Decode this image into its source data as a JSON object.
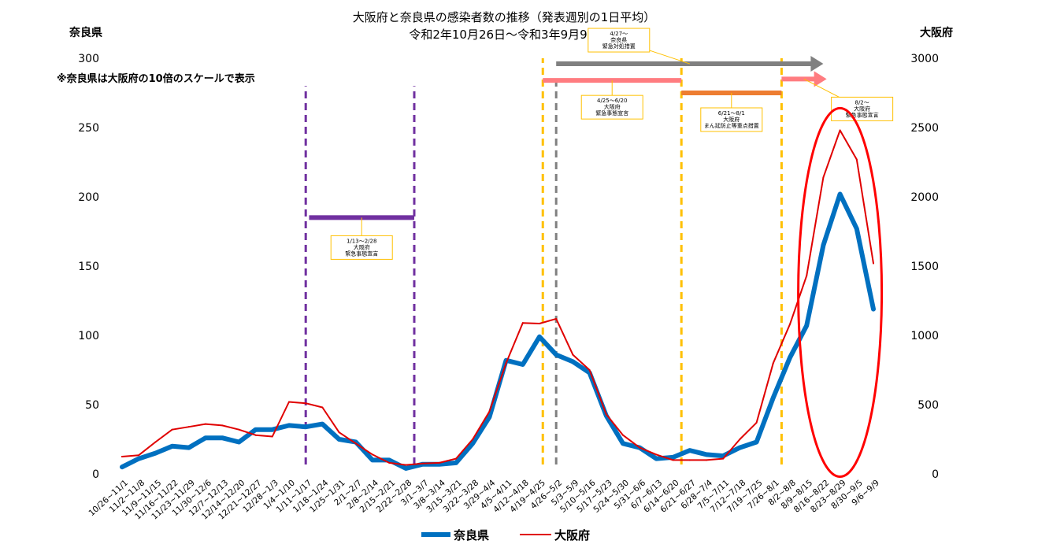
{
  "chart_data": {
    "type": "line",
    "title": "大阪府と奈良県の感染者数の推移（発表週別の1日平均）",
    "subtitle": "令和2年10月26日～令和3年9月9日",
    "note": "※奈良県は大阪府の10倍のスケールで表示",
    "left_axis": {
      "label": "奈良県",
      "color": "#2E75B6",
      "range": [
        0,
        300
      ],
      "ticks": [
        "0",
        "50",
        "100",
        "150",
        "200",
        "250",
        "300"
      ]
    },
    "right_axis": {
      "label": "大阪府",
      "color": "#FF0000",
      "range": [
        0,
        3000
      ],
      "ticks": [
        "0",
        "500",
        "1000",
        "1500",
        "2000",
        "2500",
        "3000"
      ]
    },
    "categories": [
      "10/26~11/1",
      "11/2~11/8",
      "11/9~11/15",
      "11/16~11/22",
      "11/23~11/29",
      "11/30~12/6",
      "12/7~12/13",
      "12/14~12/20",
      "12/21~12/27",
      "12/28~1/3",
      "1/4~1/10",
      "1/11~1/17",
      "1/18~1/24",
      "1/25~1/31",
      "2/1~2/7",
      "2/8~2/14",
      "2/15~2/21",
      "2/22~2/28",
      "3/1~3/7",
      "3/8~3/14",
      "3/15~3/21",
      "3/22~3/28",
      "3/29~4/4",
      "4/5~4/11",
      "4/12~4/18",
      "4/19~4/25",
      "4/26~5/2",
      "5/3~5/9",
      "5/10~5/16",
      "5/17~5/23",
      "5/24~5/30",
      "5/31~6/6",
      "6/7~6/13",
      "6/14~6/20",
      "6/21~6/27",
      "6/28~7/4",
      "7/5~7/11",
      "7/12~7/18",
      "7/19~7/25",
      "7/26~8/1",
      "8/2~8/8",
      "8/9~8/15",
      "8/16~8/22",
      "8/23~8/29",
      "8/30~9/5",
      "9/6~9/9"
    ],
    "series": [
      {
        "name": "奈良県",
        "axis": "left",
        "color": "#0070C0",
        "values": [
          5,
          11,
          15,
          20,
          19,
          26,
          26,
          23,
          32,
          32,
          35,
          34,
          36,
          25,
          23,
          10,
          10,
          4,
          7,
          7,
          8,
          22,
          41,
          82,
          79,
          99,
          86,
          81,
          73,
          42,
          22,
          19,
          11,
          12,
          17,
          14,
          13,
          19,
          23,
          55,
          84,
          107,
          165,
          202,
          177,
          119
        ]
      },
      {
        "name": "大阪府",
        "axis": "right",
        "color": "#E00000",
        "values": [
          125,
          135,
          230,
          320,
          340,
          360,
          350,
          320,
          280,
          270,
          520,
          510,
          480,
          300,
          220,
          140,
          80,
          65,
          75,
          80,
          110,
          250,
          450,
          800,
          1090,
          1085,
          1120,
          860,
          750,
          430,
          280,
          190,
          140,
          100,
          100,
          100,
          110,
          250,
          370,
          800,
          1080,
          1430,
          2140,
          2480,
          2270,
          1520
        ]
      }
    ],
    "events": [
      {
        "type": "vline",
        "color": "#7030A0",
        "at": 11.0,
        "top": 280
      },
      {
        "type": "vline",
        "color": "#7030A0",
        "at": 17.5,
        "top": 280
      },
      {
        "type": "bar",
        "color": "#7030A0",
        "from": 11.2,
        "to": 17.5,
        "value": 185,
        "note": [
          "1/13～2/28",
          "大阪府",
          "緊急事態宣言"
        ]
      },
      {
        "type": "vline",
        "color": "#FFC000",
        "at": 25.2,
        "top": 300
      },
      {
        "type": "vline",
        "color": "#FFC000",
        "at": 33.5,
        "top": 300
      },
      {
        "type": "vline",
        "color": "#FFC000",
        "at": 39.5,
        "top": 300
      },
      {
        "type": "vline",
        "color": "#808080",
        "at": 26.0,
        "top": 285
      },
      {
        "type": "arrow",
        "color": "#808080",
        "from": 26.0,
        "to": 42.0,
        "value": 296,
        "note": [
          "4/27～",
          "奈良県",
          "緊急対処措置"
        ]
      },
      {
        "type": "bar",
        "color": "#FF7C80",
        "from": 25.2,
        "to": 33.5,
        "value": 284,
        "note": [
          "4/25～6/20",
          "大阪府",
          "緊急事態宣言"
        ]
      },
      {
        "type": "bar",
        "color": "#ED7D31",
        "from": 33.5,
        "to": 39.5,
        "value": 275,
        "note": [
          "6/21～8/1",
          "大阪府",
          "まん延防止等重点措置"
        ]
      },
      {
        "type": "arrow",
        "color": "#FF7C80",
        "from": 39.5,
        "to": 42.2,
        "value": 285,
        "note": [
          "8/2～",
          "大阪府",
          "緊急事態宣言"
        ]
      }
    ],
    "highlight": {
      "type": "ellipse",
      "color": "#FF0000",
      "from": 40.5,
      "to": 45.5,
      "value_range": [
        -2,
        264
      ]
    },
    "grid": false,
    "legend": {
      "placement": "bottom",
      "entries": [
        "奈良県",
        "大阪府"
      ]
    }
  }
}
